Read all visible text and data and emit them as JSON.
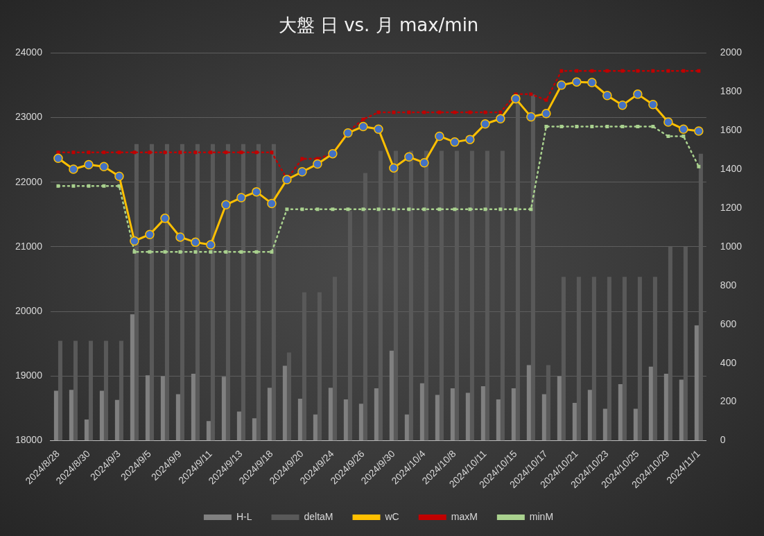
{
  "chart_data": {
    "type": "line",
    "title": "大盤 日 vs. 月 max/min",
    "categories": [
      "2024/8/28",
      null,
      "2024/8/30",
      null,
      "2024/9/3",
      null,
      "2024/9/5",
      null,
      "2024/9/9",
      null,
      "2024/9/11",
      null,
      "2024/9/13",
      null,
      "2024/9/18",
      null,
      "2024/9/20",
      null,
      "2024/9/24",
      null,
      "2024/9/26",
      null,
      "2024/9/30",
      null,
      "2024/10/4",
      null,
      "2024/10/8",
      null,
      "2024/10/11",
      null,
      "2024/10/15",
      null,
      "2024/10/17",
      null,
      "2024/10/21",
      null,
      "2024/10/23",
      null,
      "2024/10/25",
      null,
      "2024/10/29",
      null,
      "2024/11/1"
    ],
    "series": [
      {
        "name": "H-L",
        "type": "bar",
        "axis": "y2",
        "color": "#808080",
        "values": [
          258,
          262,
          109,
          258,
          210,
          652,
          337,
          333,
          240,
          345,
          101,
          330,
          150,
          116,
          273,
          386,
          217,
          135,
          273,
          213,
          191,
          270,
          464,
          135,
          296,
          236,
          270,
          247,
          281,
          213,
          270,
          390,
          240,
          333,
          195,
          262,
          165,
          292,
          165,
          382,
          345,
          315,
          595
        ]
      },
      {
        "name": "deltaM",
        "type": "bar",
        "axis": "y2",
        "color": "#595959",
        "values": [
          515,
          515,
          515,
          515,
          515,
          1530,
          1530,
          1530,
          1530,
          1530,
          1530,
          1530,
          1530,
          1530,
          1530,
          455,
          765,
          765,
          845,
          1185,
          1380,
          1495,
          1495,
          1495,
          1495,
          1495,
          1495,
          1495,
          1495,
          1495,
          1785,
          1785,
          390,
          845,
          845,
          845,
          845,
          845,
          845,
          845,
          1000,
          1000,
          1480
        ]
      },
      {
        "name": "wC",
        "axis": "y",
        "color": "#ffc000",
        "marker": "circle",
        "line_style": "solid",
        "values": [
          22370,
          22200,
          22270,
          22240,
          22090,
          21090,
          21190,
          21440,
          21150,
          21070,
          21030,
          21650,
          21760,
          21850,
          21670,
          22040,
          22160,
          22280,
          22440,
          22760,
          22860,
          22820,
          22220,
          22390,
          22300,
          22710,
          22620,
          22660,
          22900,
          22980,
          23290,
          23010,
          23060,
          23500,
          23550,
          23540,
          23340,
          23190,
          23360,
          23200,
          22930,
          22820,
          22790
        ]
      },
      {
        "name": "maxM",
        "axis": "y",
        "color": "#c00000",
        "marker": "square",
        "line_style": "dotted",
        "values": [
          22460,
          22460,
          22460,
          22460,
          22460,
          22460,
          22460,
          22460,
          22460,
          22460,
          22460,
          22460,
          22460,
          22460,
          22460,
          22050,
          22360,
          22360,
          22440,
          22780,
          22970,
          23080,
          23080,
          23080,
          23080,
          23080,
          23080,
          23080,
          23080,
          23080,
          23360,
          23360,
          23270,
          23720,
          23720,
          23720,
          23720,
          23720,
          23720,
          23720,
          23720,
          23720,
          23720
        ]
      },
      {
        "name": "minM",
        "axis": "y",
        "color": "#a9d18e",
        "marker": "square",
        "line_style": "dotted",
        "values": [
          21940,
          21940,
          21940,
          21940,
          21940,
          20920,
          20920,
          20920,
          20920,
          20920,
          20920,
          20920,
          20920,
          20920,
          20920,
          21580,
          21580,
          21580,
          21580,
          21580,
          21580,
          21580,
          21580,
          21580,
          21580,
          21580,
          21580,
          21580,
          21580,
          21580,
          21580,
          21580,
          22860,
          22860,
          22860,
          22860,
          22860,
          22860,
          22860,
          22860,
          22710,
          22710,
          22240
        ]
      }
    ],
    "ylim": [
      18000,
      24000
    ],
    "yticks": [
      18000,
      19000,
      20000,
      21000,
      22000,
      23000,
      24000
    ],
    "y2lim": [
      0,
      2000
    ],
    "y2ticks": [
      0,
      200,
      400,
      600,
      800,
      1000,
      1200,
      1400,
      1600,
      1800,
      2000
    ],
    "grid": "y",
    "legend": "bottom"
  }
}
